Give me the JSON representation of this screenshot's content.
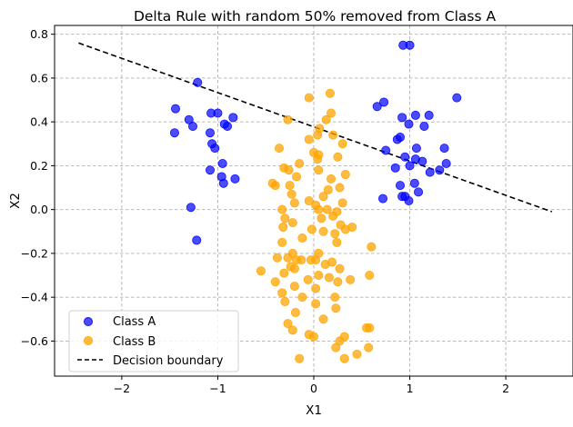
{
  "chart_data": {
    "type": "scatter",
    "title": "Delta Rule with random 50% removed from Class A",
    "xlabel": "X1",
    "ylabel": "X2",
    "xlim": [
      -2.7,
      2.7
    ],
    "ylim": [
      -0.76,
      0.84
    ],
    "xticks": [
      -2,
      -1,
      0,
      1,
      2
    ],
    "yticks": [
      -0.6,
      -0.4,
      -0.2,
      0.0,
      0.2,
      0.4,
      0.6,
      0.8
    ],
    "ytick_labels": [
      "−0.6",
      "−0.4",
      "−0.2",
      "0.0",
      "0.2",
      "0.4",
      "0.6",
      "0.8"
    ],
    "xtick_labels": [
      "−2",
      "−1",
      "0",
      "1",
      "2"
    ],
    "grid": true,
    "legend_position": "lower-left",
    "series": [
      {
        "name": "Class A",
        "color": "#0000ff",
        "marker": "circle",
        "points": [
          [
            -1.21,
            0.58
          ],
          [
            -1.44,
            0.46
          ],
          [
            -1.45,
            0.35
          ],
          [
            -1.3,
            0.41
          ],
          [
            -1.26,
            0.38
          ],
          [
            -1.07,
            0.44
          ],
          [
            -1.0,
            0.44
          ],
          [
            -1.08,
            0.35
          ],
          [
            -1.06,
            0.3
          ],
          [
            -1.03,
            0.28
          ],
          [
            -0.84,
            0.42
          ],
          [
            -0.93,
            0.39
          ],
          [
            -0.9,
            0.38
          ],
          [
            -1.08,
            0.18
          ],
          [
            -0.95,
            0.21
          ],
          [
            -0.96,
            0.15
          ],
          [
            -0.94,
            0.12
          ],
          [
            -0.82,
            0.14
          ],
          [
            -1.28,
            0.01
          ],
          [
            -1.22,
            -0.14
          ],
          [
            0.93,
            0.75
          ],
          [
            1.0,
            0.75
          ],
          [
            0.73,
            0.49
          ],
          [
            0.66,
            0.47
          ],
          [
            0.92,
            0.42
          ],
          [
            1.06,
            0.43
          ],
          [
            1.2,
            0.43
          ],
          [
            0.99,
            0.39
          ],
          [
            1.15,
            0.38
          ],
          [
            1.49,
            0.51
          ],
          [
            0.9,
            0.33
          ],
          [
            0.87,
            0.32
          ],
          [
            0.75,
            0.27
          ],
          [
            1.07,
            0.28
          ],
          [
            1.36,
            0.28
          ],
          [
            0.95,
            0.24
          ],
          [
            1.0,
            0.2
          ],
          [
            1.06,
            0.23
          ],
          [
            1.13,
            0.22
          ],
          [
            1.38,
            0.21
          ],
          [
            0.85,
            0.19
          ],
          [
            1.21,
            0.17
          ],
          [
            1.31,
            0.18
          ],
          [
            0.9,
            0.11
          ],
          [
            1.05,
            0.12
          ],
          [
            1.09,
            0.08
          ],
          [
            0.92,
            0.06
          ],
          [
            0.95,
            0.06
          ],
          [
            0.99,
            0.04
          ],
          [
            0.72,
            0.05
          ]
        ]
      },
      {
        "name": "Class B",
        "color": "#ffa500",
        "marker": "circle",
        "points": [
          [
            0.17,
            0.53
          ],
          [
            -0.05,
            0.51
          ],
          [
            0.18,
            0.44
          ],
          [
            0.13,
            0.41
          ],
          [
            -0.27,
            0.41
          ],
          [
            0.06,
            0.37
          ],
          [
            0.04,
            0.34
          ],
          [
            -0.05,
            0.32
          ],
          [
            0.2,
            0.34
          ],
          [
            -0.36,
            0.28
          ],
          [
            0.3,
            0.3
          ],
          [
            0.0,
            0.26
          ],
          [
            0.05,
            0.25
          ],
          [
            0.04,
            0.23
          ],
          [
            0.25,
            0.24
          ],
          [
            -0.15,
            0.21
          ],
          [
            -0.31,
            0.19
          ],
          [
            -0.26,
            0.18
          ],
          [
            0.05,
            0.18
          ],
          [
            -0.18,
            0.15
          ],
          [
            0.33,
            0.16
          ],
          [
            0.18,
            0.14
          ],
          [
            -0.43,
            0.12
          ],
          [
            -0.4,
            0.11
          ],
          [
            -0.25,
            0.11
          ],
          [
            0.15,
            0.09
          ],
          [
            -0.23,
            0.07
          ],
          [
            0.27,
            0.1
          ],
          [
            0.1,
            0.06
          ],
          [
            0.3,
            0.03
          ],
          [
            -0.05,
            0.04
          ],
          [
            0.02,
            0.02
          ],
          [
            -0.2,
            0.03
          ],
          [
            0.05,
            0.0
          ],
          [
            -0.33,
            0.0
          ],
          [
            0.14,
            0.0
          ],
          [
            0.24,
            -0.01
          ],
          [
            0.08,
            -0.04
          ],
          [
            0.2,
            -0.03
          ],
          [
            -0.3,
            -0.04
          ],
          [
            -0.22,
            -0.06
          ],
          [
            0.28,
            -0.07
          ],
          [
            -0.32,
            -0.08
          ],
          [
            0.4,
            -0.08
          ],
          [
            0.33,
            -0.09
          ],
          [
            -0.02,
            -0.09
          ],
          [
            0.1,
            -0.1
          ],
          [
            0.22,
            -0.11
          ],
          [
            -0.12,
            -0.13
          ],
          [
            -0.33,
            -0.15
          ],
          [
            0.24,
            -0.15
          ],
          [
            0.6,
            -0.17
          ],
          [
            -0.22,
            -0.2
          ],
          [
            0.05,
            -0.2
          ],
          [
            -0.38,
            -0.22
          ],
          [
            -0.27,
            -0.22
          ],
          [
            -0.18,
            -0.23
          ],
          [
            -0.13,
            -0.23
          ],
          [
            -0.03,
            -0.23
          ],
          [
            0.02,
            -0.23
          ],
          [
            0.19,
            -0.24
          ],
          [
            -0.24,
            -0.26
          ],
          [
            0.12,
            -0.25
          ],
          [
            -0.2,
            -0.27
          ],
          [
            0.27,
            -0.27
          ],
          [
            -0.55,
            -0.28
          ],
          [
            -0.31,
            -0.29
          ],
          [
            0.05,
            -0.3
          ],
          [
            0.16,
            -0.31
          ],
          [
            0.58,
            -0.3
          ],
          [
            -0.06,
            -0.32
          ],
          [
            0.38,
            -0.32
          ],
          [
            -0.4,
            -0.33
          ],
          [
            0.25,
            -0.33
          ],
          [
            -0.2,
            -0.35
          ],
          [
            0.02,
            -0.36
          ],
          [
            -0.33,
            -0.38
          ],
          [
            -0.12,
            -0.4
          ],
          [
            0.22,
            -0.4
          ],
          [
            -0.3,
            -0.42
          ],
          [
            0.02,
            -0.43
          ],
          [
            0.23,
            -0.45
          ],
          [
            -0.19,
            -0.47
          ],
          [
            0.1,
            -0.5
          ],
          [
            -0.27,
            -0.52
          ],
          [
            0.55,
            -0.54
          ],
          [
            0.58,
            -0.54
          ],
          [
            -0.22,
            -0.55
          ],
          [
            -0.05,
            -0.57
          ],
          [
            0.0,
            -0.58
          ],
          [
            0.32,
            -0.58
          ],
          [
            0.27,
            -0.6
          ],
          [
            0.57,
            -0.63
          ],
          [
            0.23,
            -0.63
          ],
          [
            0.45,
            -0.66
          ],
          [
            0.32,
            -0.68
          ],
          [
            -0.15,
            -0.68
          ]
        ]
      }
    ],
    "lines": [
      {
        "name": "Decision boundary",
        "color": "#000000",
        "style": "dashed",
        "x": [
          -2.45,
          2.48
        ],
        "y": [
          0.76,
          -0.01
        ]
      }
    ]
  }
}
